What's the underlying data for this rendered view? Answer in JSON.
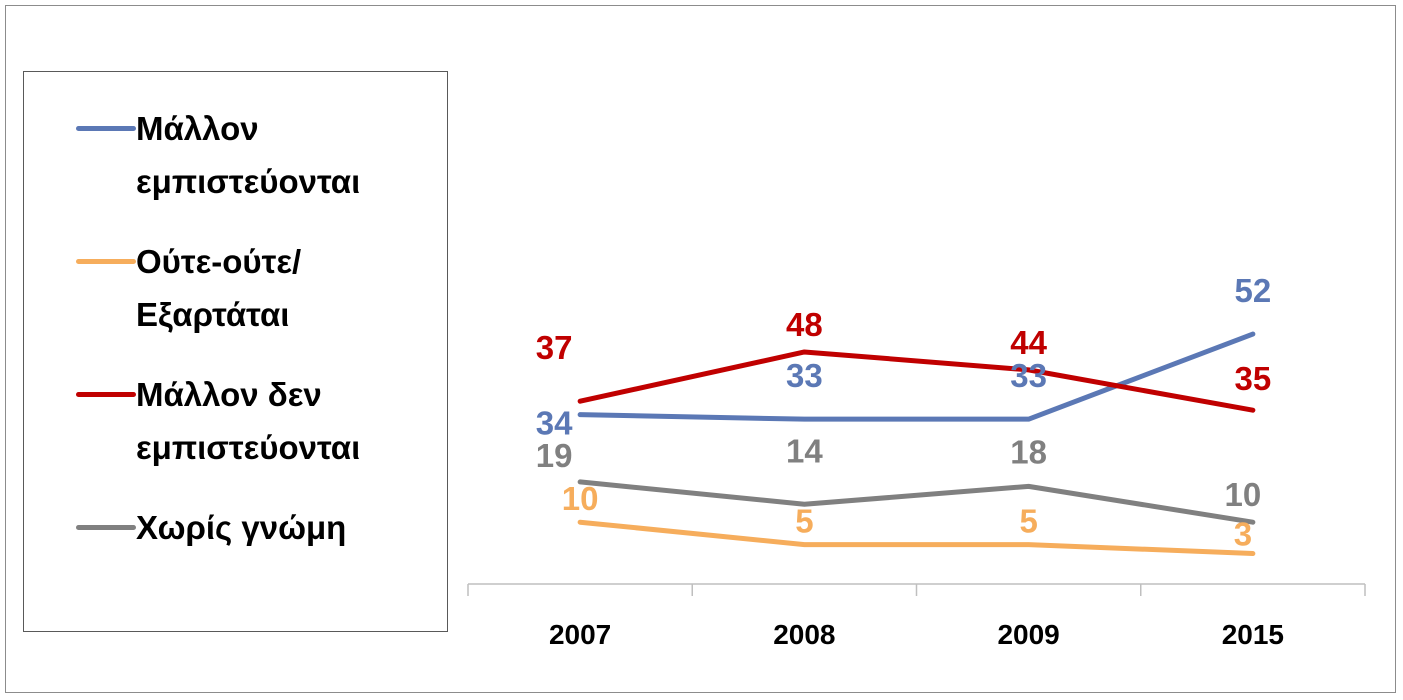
{
  "chart_data": {
    "type": "line",
    "categories": [
      "2007",
      "2008",
      "2009",
      "2015"
    ],
    "series": [
      {
        "name": "Μάλλον εμπιστεύονται",
        "values": [
          34,
          33,
          33,
          52
        ],
        "color": "#5b78b5"
      },
      {
        "name": "Ούτε-ούτε/ Εξαρτάται",
        "values": [
          10,
          5,
          5,
          3
        ],
        "color": "#f6ad5c"
      },
      {
        "name": "Μάλλον δεν εμπιστεύονται",
        "values": [
          37,
          48,
          44,
          35
        ],
        "color": "#c00000"
      },
      {
        "name": "Χωρίς γνώμη",
        "values": [
          19,
          14,
          18,
          10
        ],
        "color": "#808080"
      }
    ],
    "legend": "left",
    "grid": false
  },
  "legend": {
    "items": [
      {
        "label": "Μάλλον εμπιστεύονται",
        "color": "#5b78b5"
      },
      {
        "label": "Ούτε-ούτε/ Εξαρτάται",
        "color": "#f6ad5c"
      },
      {
        "label": "Μάλλον δεν εμπιστεύονται",
        "color": "#c00000"
      },
      {
        "label": "Χωρίς γνώμη",
        "color": "#808080"
      }
    ]
  }
}
